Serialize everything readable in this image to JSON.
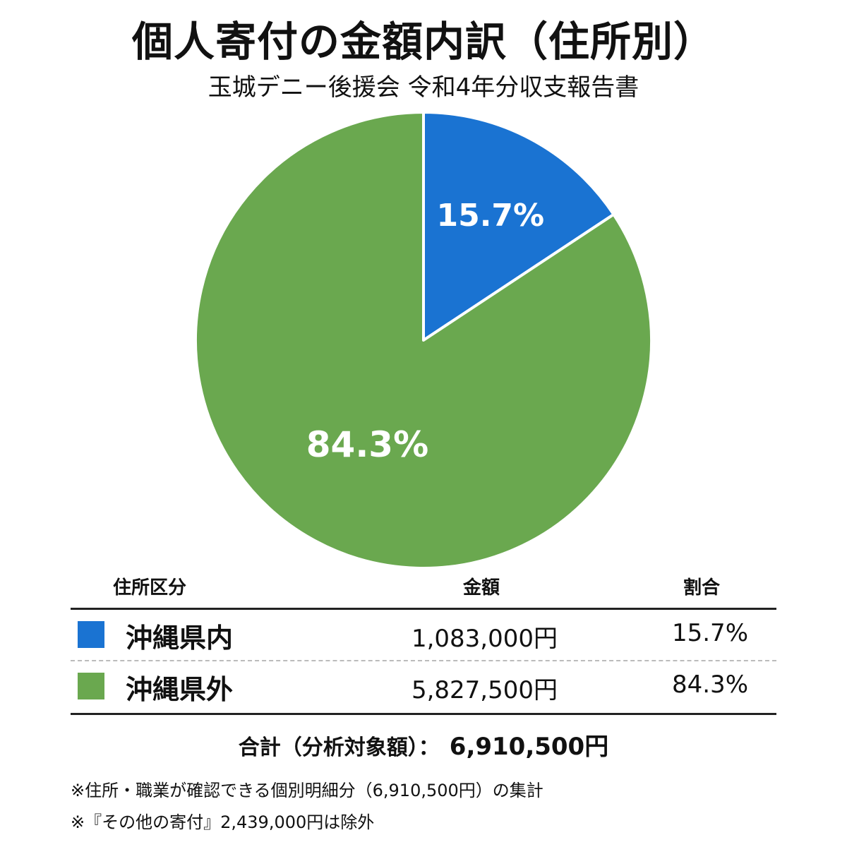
{
  "title": "個人寄付の金額内訳（住所別）",
  "subtitle": "玉城デニー後援会 令和4年分収支報告書",
  "colors": {
    "inside_okinawa": "#1a73d2",
    "outside_okinawa": "#6aa84f",
    "slice_label": "#ffffff"
  },
  "chart_data": {
    "type": "pie",
    "categories": [
      "沖縄県内",
      "沖縄県外"
    ],
    "values": [
      15.7,
      84.3
    ],
    "labels": [
      "15.7%",
      "84.3%"
    ],
    "start": "12 o'clock",
    "direction": "clockwise"
  },
  "table": {
    "headers": {
      "address": "住所区分",
      "amount": "金額",
      "ratio": "割合"
    },
    "rows": [
      {
        "address": "沖縄県内",
        "amount": "1,083,000円",
        "ratio": "15.7%"
      },
      {
        "address": "沖縄県外",
        "amount": "5,827,500円",
        "ratio": "84.3%"
      }
    ]
  },
  "total": {
    "label": "合計（分析対象額）：",
    "value": "6,910,500円"
  },
  "notes": [
    "※住所・職業が確認できる個別明細分（6,910,500円）の集計",
    "※『その他の寄付』2,439,000円は除外"
  ]
}
